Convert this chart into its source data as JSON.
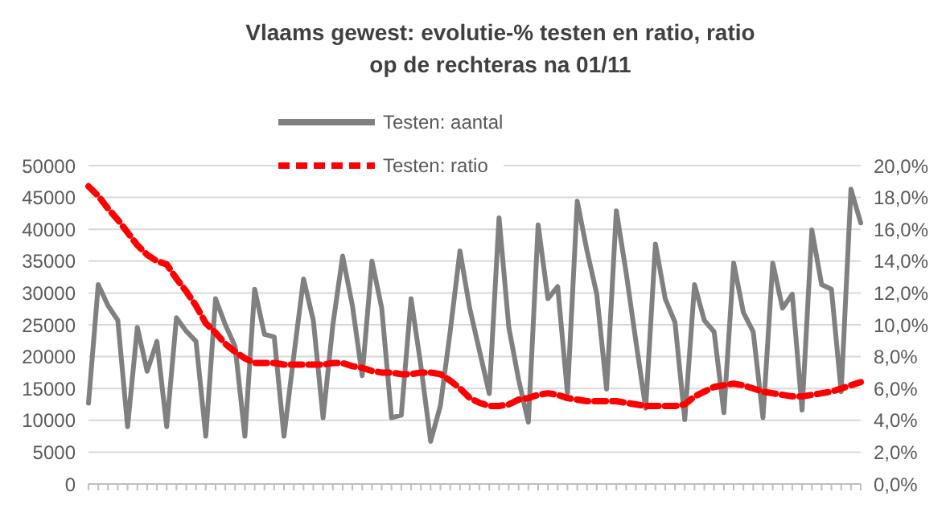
{
  "chart_data": {
    "type": "line",
    "title": "Vlaams gewest: evolutie-% testen en ratio, ratio op de rechteras na 01/11",
    "categories": [
      null,
      null,
      null,
      null,
      null,
      null,
      null,
      null,
      null,
      null,
      null,
      null,
      null,
      null,
      null,
      null,
      null,
      null,
      null,
      null,
      null,
      null,
      null,
      null,
      null,
      null,
      null,
      null,
      null,
      null,
      null,
      null,
      null,
      null,
      null,
      null,
      null,
      null,
      null,
      null,
      null,
      null,
      null,
      null,
      null,
      null,
      null,
      null,
      null,
      null,
      null,
      null,
      null,
      null,
      null,
      null,
      null,
      null,
      null,
      null,
      null,
      null,
      null,
      null,
      null,
      null,
      null,
      null,
      null,
      null,
      null,
      null,
      null,
      null,
      null,
      null,
      null,
      null,
      null,
      null
    ],
    "series": [
      {
        "name": "Testen: aantal",
        "color": "#808080",
        "line_style": "solid",
        "values": [
          12700,
          31300,
          28000,
          25700,
          9000,
          24600,
          17700,
          22400,
          9000,
          26100,
          24000,
          22400,
          7500,
          29100,
          25000,
          21600,
          7500,
          30600,
          23500,
          23100,
          7500,
          20100,
          32200,
          25700,
          10400,
          25000,
          35800,
          28000,
          17000,
          35000,
          27600,
          10400,
          10800,
          29100,
          18600,
          6700,
          12300,
          23900,
          36600,
          27600,
          20900,
          14200,
          41800,
          24600,
          16400,
          9700,
          40700,
          29100,
          31000,
          14200,
          44400,
          36600,
          29800,
          14900,
          42900,
          33200,
          22400,
          11900,
          37700,
          29100,
          25400,
          10100,
          31300,
          25700,
          23900,
          11200,
          34700,
          26900,
          23900,
          10400,
          34700,
          27600,
          29800,
          11600,
          39900,
          31300,
          30600,
          14500,
          46300,
          41000
        ]
      },
      {
        "name": "Testen: ratio",
        "color": "#ff0000",
        "line_style": "dashed",
        "axis": "y2",
        "values": [
          18.7,
          18.1,
          17.3,
          16.6,
          15.8,
          15.0,
          14.4,
          14.0,
          13.8,
          12.9,
          12.1,
          11.2,
          10.1,
          9.5,
          8.8,
          8.3,
          7.9,
          7.6,
          7.6,
          7.6,
          7.5,
          7.5,
          7.5,
          7.5,
          7.5,
          7.6,
          7.6,
          7.4,
          7.3,
          7.1,
          7.0,
          7.0,
          6.9,
          6.9,
          7.0,
          7.0,
          6.9,
          6.5,
          6.0,
          5.4,
          5.1,
          4.9,
          4.9,
          5.0,
          5.3,
          5.4,
          5.6,
          5.7,
          5.6,
          5.4,
          5.3,
          5.2,
          5.2,
          5.2,
          5.2,
          5.1,
          5.0,
          4.9,
          4.9,
          4.9,
          4.9,
          5.0,
          5.5,
          5.8,
          6.1,
          6.2,
          6.3,
          6.2,
          6.0,
          5.8,
          5.7,
          5.6,
          5.5,
          5.5,
          5.6,
          5.7,
          5.8,
          6.0,
          6.2,
          6.4
        ]
      }
    ],
    "ylim": [
      0,
      50000
    ],
    "yticks": [
      0,
      5000,
      10000,
      15000,
      20000,
      25000,
      30000,
      35000,
      40000,
      45000,
      50000
    ],
    "y2lim": [
      0,
      20
    ],
    "y2ticks": [
      {
        "value": 0,
        "label": "0,0%"
      },
      {
        "value": 2,
        "label": "2,0%"
      },
      {
        "value": 4,
        "label": "4,0%"
      },
      {
        "value": 6,
        "label": "6,0%"
      },
      {
        "value": 8,
        "label": "8,0%"
      },
      {
        "value": 10,
        "label": "10,0%"
      },
      {
        "value": 12,
        "label": "12,0%"
      },
      {
        "value": 14,
        "label": "14,0%"
      },
      {
        "value": 16,
        "label": "16,0%"
      },
      {
        "value": 18,
        "label": "18,0%"
      },
      {
        "value": 20,
        "label": "20,0%"
      }
    ],
    "grid": "y",
    "legend": "top",
    "marker": "none"
  }
}
